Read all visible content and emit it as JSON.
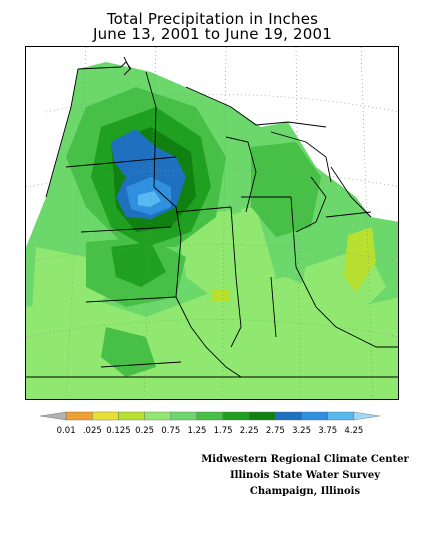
{
  "title_line_1": "Total Precipitation in Inches",
  "title_line_2": "June 13, 2001 to June 19, 2001",
  "legend": {
    "labels": [
      "0.01",
      ".025",
      "0.125",
      "0.25",
      "0.75",
      "1.25",
      "1.75",
      "2.25",
      "2.75",
      "3.25",
      "3.75",
      "4.25"
    ],
    "colors": [
      "#b0b0b0",
      "#f0a030",
      "#e8e030",
      "#b8e030",
      "#90e870",
      "#6cd86c",
      "#48c048",
      "#20a020",
      "#108010",
      "#2070c0",
      "#3090e0",
      "#58b8f0",
      "#a0d8f8"
    ]
  },
  "credits": {
    "line_1": "Midwestern Regional Climate Center",
    "line_2": "Illinois State Water Survey",
    "line_3": "Champaign, Illinois"
  }
}
